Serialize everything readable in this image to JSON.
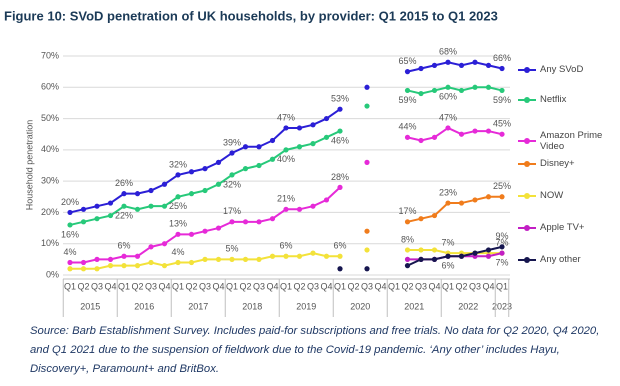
{
  "chart_data": {
    "type": "line",
    "title": "Figure 10: SVoD penetration of UK households, by provider: Q1 2015 to Q1 2023",
    "y_label": "Household penetration",
    "categories": [
      "Q1",
      "Q2",
      "Q3",
      "Q4",
      "Q1",
      "Q2",
      "Q3",
      "Q4",
      "Q1",
      "Q2",
      "Q3",
      "Q4",
      "Q1",
      "Q2",
      "Q3",
      "Q4",
      "Q1",
      "Q2",
      "Q3",
      "Q4",
      "Q1",
      "Q2",
      "Q3",
      "Q4",
      "Q1",
      "Q2",
      "Q3",
      "Q4",
      "Q1",
      "Q2",
      "Q3",
      "Q4",
      "Q1"
    ],
    "year_groups": [
      "2015",
      "2016",
      "2017",
      "2018",
      "2019",
      "2020",
      "2021",
      "2022",
      "2023"
    ],
    "ylim": [
      0,
      70
    ],
    "yticks": [
      {
        "value": 0,
        "label": "0%"
      },
      {
        "value": 10,
        "label": "10%"
      },
      {
        "value": 20,
        "label": "20%"
      },
      {
        "value": 30,
        "label": "30%"
      },
      {
        "value": 40,
        "label": "40%"
      },
      {
        "value": 50,
        "label": "50%"
      },
      {
        "value": 60,
        "label": "60%"
      },
      {
        "value": 70,
        "label": "70%"
      }
    ],
    "grid": true,
    "legend": "right",
    "series": [
      {
        "name": "Any SVoD",
        "color": "#2b1fd6",
        "values": [
          20,
          21,
          22,
          23,
          26,
          26,
          27,
          29,
          32,
          33,
          34,
          36,
          39,
          41,
          41,
          43,
          47,
          47,
          48,
          50,
          53,
          null,
          60,
          null,
          null,
          65,
          66,
          67,
          68,
          67,
          68,
          67,
          66
        ],
        "value_labels": [
          "20%",
          null,
          null,
          null,
          "26%",
          null,
          null,
          null,
          "32%",
          null,
          null,
          null,
          "39%",
          null,
          null,
          null,
          "47%",
          null,
          null,
          null,
          "53%",
          null,
          null,
          null,
          null,
          "65%",
          null,
          null,
          "68%",
          null,
          null,
          null,
          "66%"
        ]
      },
      {
        "name": "Netflix",
        "color": "#27c97a",
        "values": [
          16,
          17,
          18,
          19,
          22,
          21,
          22,
          22,
          25,
          26,
          27,
          29,
          32,
          34,
          35,
          37,
          40,
          41,
          42,
          44,
          46,
          null,
          54,
          null,
          null,
          59,
          58,
          59,
          60,
          59,
          60,
          60,
          59
        ],
        "value_labels": [
          "16%",
          null,
          null,
          null,
          "22%",
          null,
          null,
          null,
          "25%",
          null,
          null,
          null,
          "32%",
          null,
          null,
          null,
          "40%",
          null,
          null,
          null,
          "46%",
          null,
          null,
          null,
          null,
          "59%",
          null,
          null,
          "60%",
          null,
          null,
          null,
          "59%"
        ]
      },
      {
        "name": "Amazon Prime Video",
        "color": "#e62ad8",
        "values": [
          4,
          4,
          5,
          5,
          6,
          6,
          9,
          10,
          13,
          13,
          14,
          15,
          17,
          17,
          17,
          18,
          21,
          21,
          22,
          24,
          28,
          null,
          36,
          null,
          null,
          44,
          43,
          44,
          47,
          45,
          46,
          46,
          45
        ],
        "value_labels": [
          "4%",
          null,
          null,
          null,
          "6%",
          null,
          null,
          null,
          "13%",
          null,
          null,
          null,
          "17%",
          null,
          null,
          null,
          "21%",
          null,
          null,
          null,
          "28%",
          null,
          null,
          null,
          null,
          "44%",
          null,
          null,
          "47%",
          null,
          null,
          null,
          "45%"
        ]
      },
      {
        "name": "Disney+",
        "color": "#f07c1c",
        "values": [
          null,
          null,
          null,
          null,
          null,
          null,
          null,
          null,
          null,
          null,
          null,
          null,
          null,
          null,
          null,
          null,
          null,
          null,
          null,
          null,
          null,
          null,
          14,
          null,
          null,
          17,
          18,
          19,
          23,
          23,
          24,
          25,
          25
        ],
        "value_labels": [
          null,
          null,
          null,
          null,
          null,
          null,
          null,
          null,
          null,
          null,
          null,
          null,
          null,
          null,
          null,
          null,
          null,
          null,
          null,
          null,
          null,
          null,
          null,
          null,
          null,
          "17%",
          null,
          null,
          "23%",
          null,
          null,
          null,
          "25%"
        ]
      },
      {
        "name": "NOW",
        "color": "#f3e23a",
        "values": [
          2,
          2,
          2,
          3,
          3,
          3,
          4,
          3,
          4,
          4,
          5,
          5,
          5,
          5,
          5,
          6,
          6,
          6,
          7,
          6,
          6,
          null,
          8,
          null,
          null,
          8,
          8,
          8,
          7,
          7,
          7,
          7,
          7
        ],
        "value_labels": [
          null,
          null,
          null,
          null,
          null,
          null,
          null,
          null,
          "4%",
          null,
          null,
          null,
          "5%",
          null,
          null,
          null,
          "6%",
          null,
          null,
          null,
          "6%",
          null,
          null,
          null,
          null,
          "8%",
          null,
          null,
          "7%",
          null,
          null,
          null,
          "7%"
        ]
      },
      {
        "name": "Apple TV+",
        "color": "#c21fc4",
        "values": [
          null,
          null,
          null,
          null,
          null,
          null,
          null,
          null,
          null,
          null,
          null,
          null,
          null,
          null,
          null,
          null,
          null,
          null,
          null,
          null,
          null,
          null,
          null,
          null,
          null,
          5,
          5,
          5,
          6,
          6,
          6,
          6,
          7
        ],
        "value_labels": [
          null,
          null,
          null,
          null,
          null,
          null,
          null,
          null,
          null,
          null,
          null,
          null,
          null,
          null,
          null,
          null,
          null,
          null,
          null,
          null,
          null,
          null,
          null,
          null,
          null,
          null,
          null,
          null,
          "6%",
          null,
          null,
          null,
          "7%"
        ]
      },
      {
        "name": "Any other",
        "color": "#16164f",
        "values": [
          null,
          null,
          null,
          null,
          null,
          null,
          null,
          null,
          null,
          null,
          null,
          null,
          null,
          null,
          null,
          null,
          null,
          null,
          null,
          null,
          2,
          null,
          2,
          null,
          null,
          3,
          5,
          5,
          6,
          6,
          7,
          8,
          9
        ],
        "value_labels": [
          null,
          null,
          null,
          null,
          null,
          null,
          null,
          null,
          null,
          null,
          null,
          null,
          null,
          null,
          null,
          null,
          null,
          null,
          null,
          null,
          null,
          null,
          null,
          null,
          null,
          null,
          null,
          null,
          null,
          null,
          null,
          null,
          "9%"
        ]
      }
    ],
    "note": "Source: Barb Establishment Survey. Includes paid-for subscriptions and free trials. No data for Q2 2020, Q4 2020, and Q1 2021 due to the suspension of fieldwork due to the Covid-19 pandemic. ‘Any other’ includes Hayu, Discovery+, Paramount+ and BritBox."
  }
}
